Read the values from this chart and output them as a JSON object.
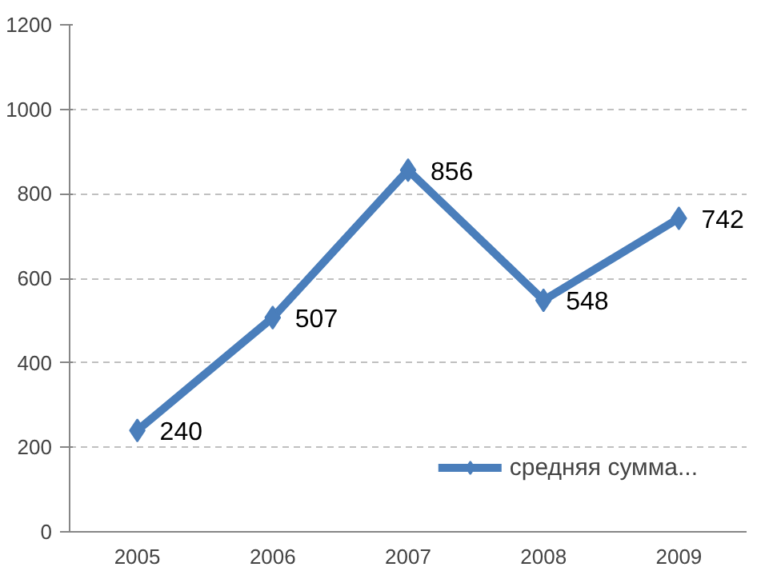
{
  "chart_data": {
    "type": "line",
    "categories": [
      "2005",
      "2006",
      "2007",
      "2008",
      "2009"
    ],
    "series": [
      {
        "name": "средняя сумма...",
        "color": "#4a7ebb",
        "values": [
          240,
          507,
          856,
          548,
          742
        ]
      }
    ],
    "ylim": [
      0,
      1200
    ],
    "yticks": [
      0,
      200,
      400,
      600,
      800,
      1000,
      1200
    ],
    "grid": "y",
    "legend": "bottom right",
    "marker": "diamond",
    "line_style": "solid",
    "data_labels": true
  }
}
